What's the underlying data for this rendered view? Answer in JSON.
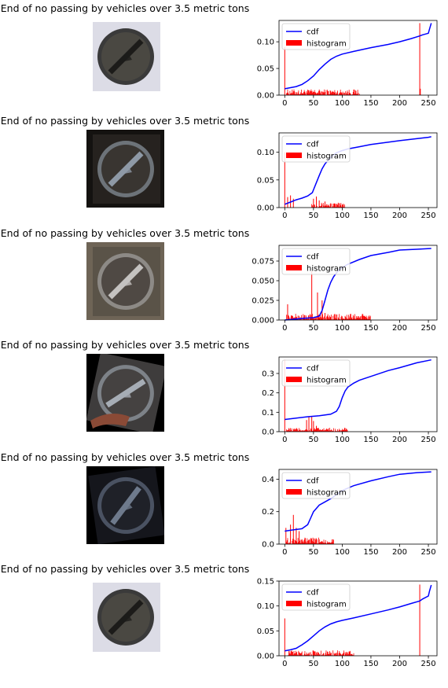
{
  "chart_data": [
    {
      "type": "histogram+line",
      "title": "End of no passing by vehicles over 3.5 metric tons",
      "sign_style": "bright",
      "legend": [
        "cdf",
        "histogram"
      ],
      "legend_position": "upper-left",
      "xlim": [
        -10,
        265
      ],
      "ylim": [
        0,
        0.14
      ],
      "xticks": [
        0,
        50,
        100,
        150,
        200,
        250
      ],
      "yticks": [
        0.0,
        0.05,
        0.1
      ],
      "ytick_labels": [
        "0.00",
        "0.05",
        "0.10"
      ],
      "cdf": {
        "x": [
          0,
          10,
          20,
          30,
          40,
          50,
          60,
          70,
          80,
          90,
          100,
          120,
          150,
          180,
          200,
          220,
          235,
          240,
          250,
          252,
          255
        ],
        "y": [
          0.012,
          0.014,
          0.016,
          0.02,
          0.027,
          0.036,
          0.048,
          0.058,
          0.067,
          0.073,
          0.077,
          0.082,
          0.089,
          0.095,
          0.1,
          0.106,
          0.111,
          0.113,
          0.116,
          0.124,
          0.135
        ]
      },
      "histogram_peaks": [
        {
          "x": 0,
          "y": 0.09
        },
        {
          "x": 235,
          "y": 0.135
        },
        {
          "x": 236,
          "y": 0.012
        }
      ],
      "histogram_noise": {
        "range": [
          2,
          130
        ],
        "max": 0.011
      }
    },
    {
      "type": "histogram+line",
      "title": "End of no passing by vehicles over 3.5 metric tons",
      "sign_style": "dark",
      "legend": [
        "cdf",
        "histogram"
      ],
      "legend_position": "upper-left",
      "xlim": [
        -10,
        265
      ],
      "ylim": [
        0,
        0.135
      ],
      "xticks": [
        0,
        50,
        100,
        150,
        200,
        250
      ],
      "yticks": [
        0.0,
        0.05,
        0.1
      ],
      "ytick_labels": [
        "0.00",
        "0.05",
        "0.10"
      ],
      "cdf": {
        "x": [
          0,
          10,
          20,
          30,
          40,
          48,
          55,
          60,
          65,
          70,
          80,
          90,
          100,
          110,
          130,
          150,
          200,
          250,
          255
        ],
        "y": [
          0.006,
          0.01,
          0.014,
          0.017,
          0.021,
          0.027,
          0.045,
          0.058,
          0.07,
          0.079,
          0.091,
          0.099,
          0.103,
          0.106,
          0.11,
          0.114,
          0.121,
          0.127,
          0.128
        ]
      },
      "histogram_peaks": [
        {
          "x": 0,
          "y": 0.1
        },
        {
          "x": 5,
          "y": 0.019
        },
        {
          "x": 10,
          "y": 0.022
        },
        {
          "x": 15,
          "y": 0.016
        },
        {
          "x": 50,
          "y": 0.016
        },
        {
          "x": 55,
          "y": 0.02
        },
        {
          "x": 60,
          "y": 0.013
        },
        {
          "x": 70,
          "y": 0.011
        }
      ],
      "histogram_noise": {
        "range": [
          45,
          105
        ],
        "max": 0.009
      }
    },
    {
      "type": "histogram+line",
      "title": "End of no passing by vehicles over 3.5 metric tons",
      "sign_style": "gray",
      "legend": [
        "cdf",
        "histogram"
      ],
      "legend_position": "upper-left",
      "xlim": [
        -10,
        265
      ],
      "ylim": [
        0,
        0.095
      ],
      "xticks": [
        0,
        50,
        100,
        150,
        200,
        250
      ],
      "yticks": [
        0.0,
        0.025,
        0.05,
        0.075
      ],
      "ytick_labels": [
        "0.000",
        "0.025",
        "0.050",
        "0.075"
      ],
      "cdf": {
        "x": [
          0,
          30,
          50,
          60,
          65,
          70,
          75,
          80,
          85,
          90,
          95,
          100,
          110,
          130,
          150,
          180,
          200,
          230,
          255
        ],
        "y": [
          0.0,
          0.002,
          0.003,
          0.005,
          0.012,
          0.025,
          0.038,
          0.048,
          0.055,
          0.06,
          0.064,
          0.067,
          0.071,
          0.077,
          0.082,
          0.086,
          0.089,
          0.09,
          0.091
        ]
      },
      "histogram_peaks": [
        {
          "x": 5,
          "y": 0.02
        },
        {
          "x": 47,
          "y": 0.062
        },
        {
          "x": 57,
          "y": 0.035
        },
        {
          "x": 65,
          "y": 0.025
        },
        {
          "x": 70,
          "y": 0.009
        }
      ],
      "histogram_noise": {
        "range": [
          2,
          150
        ],
        "max": 0.008
      }
    },
    {
      "type": "histogram+line",
      "title": "End of no passing by vehicles over 3.5 metric tons",
      "sign_style": "tilted",
      "legend": [
        "cdf",
        "histogram"
      ],
      "legend_position": "upper-left",
      "xlim": [
        -10,
        265
      ],
      "ylim": [
        0,
        0.385
      ],
      "xticks": [
        0,
        50,
        100,
        150,
        200,
        250
      ],
      "yticks": [
        0.0,
        0.1,
        0.2,
        0.3
      ],
      "ytick_labels": [
        "0.0",
        "0.1",
        "0.2",
        "0.3"
      ],
      "cdf": {
        "x": [
          0,
          20,
          40,
          60,
          80,
          90,
          95,
          100,
          105,
          110,
          120,
          130,
          150,
          180,
          200,
          230,
          255
        ],
        "y": [
          0.063,
          0.07,
          0.077,
          0.082,
          0.09,
          0.105,
          0.13,
          0.175,
          0.21,
          0.23,
          0.25,
          0.265,
          0.285,
          0.315,
          0.33,
          0.355,
          0.37
        ]
      },
      "histogram_peaks": [
        {
          "x": 0,
          "y": 0.37
        },
        {
          "x": 38,
          "y": 0.06
        },
        {
          "x": 42,
          "y": 0.075
        },
        {
          "x": 47,
          "y": 0.08
        },
        {
          "x": 50,
          "y": 0.055
        },
        {
          "x": 55,
          "y": 0.03
        }
      ],
      "histogram_noise": {
        "range": [
          2,
          110
        ],
        "max": 0.02
      }
    },
    {
      "type": "histogram+line",
      "title": "End of no passing by vehicles over 3.5 metric tons",
      "sign_style": "very-dark",
      "legend": [
        "cdf",
        "histogram"
      ],
      "legend_position": "upper-left",
      "xlim": [
        -10,
        265
      ],
      "ylim": [
        0,
        0.46
      ],
      "xticks": [
        0,
        50,
        100,
        150,
        200,
        250
      ],
      "yticks": [
        0.0,
        0.2,
        0.4
      ],
      "ytick_labels": [
        "0.0",
        "0.2",
        "0.4"
      ],
      "cdf": {
        "x": [
          0,
          10,
          20,
          30,
          40,
          45,
          50,
          55,
          60,
          70,
          80,
          100,
          120,
          150,
          180,
          200,
          230,
          255
        ],
        "y": [
          0.08,
          0.085,
          0.09,
          0.095,
          0.12,
          0.16,
          0.2,
          0.22,
          0.24,
          0.26,
          0.28,
          0.33,
          0.36,
          0.39,
          0.415,
          0.43,
          0.44,
          0.445
        ]
      },
      "histogram_peaks": [
        {
          "x": 2,
          "y": 0.1
        },
        {
          "x": 10,
          "y": 0.12
        },
        {
          "x": 15,
          "y": 0.18
        },
        {
          "x": 20,
          "y": 0.1
        },
        {
          "x": 25,
          "y": 0.08
        }
      ],
      "histogram_noise": {
        "range": [
          2,
          85
        ],
        "max": 0.04
      }
    },
    {
      "type": "histogram+line",
      "title": "End of no passing by vehicles over 3.5 metric tons",
      "sign_style": "bright",
      "legend": [
        "cdf",
        "histogram"
      ],
      "legend_position": "upper-left",
      "xlim": [
        -10,
        265
      ],
      "ylim": [
        0,
        0.15
      ],
      "xticks": [
        0,
        50,
        100,
        150,
        200,
        250
      ],
      "yticks": [
        0.0,
        0.05,
        0.1,
        0.15
      ],
      "ytick_labels": [
        "0.00",
        "0.05",
        "0.10",
        "0.15"
      ],
      "cdf": {
        "x": [
          0,
          10,
          20,
          30,
          40,
          50,
          60,
          70,
          80,
          90,
          100,
          120,
          150,
          180,
          200,
          220,
          235,
          240,
          250,
          252,
          255
        ],
        "y": [
          0.01,
          0.012,
          0.015,
          0.022,
          0.03,
          0.04,
          0.05,
          0.058,
          0.064,
          0.068,
          0.071,
          0.076,
          0.084,
          0.092,
          0.098,
          0.105,
          0.11,
          0.114,
          0.12,
          0.13,
          0.142
        ]
      },
      "histogram_peaks": [
        {
          "x": 0,
          "y": 0.075
        },
        {
          "x": 235,
          "y": 0.143
        }
      ],
      "histogram_noise": {
        "range": [
          5,
          120
        ],
        "max": 0.011
      }
    }
  ]
}
